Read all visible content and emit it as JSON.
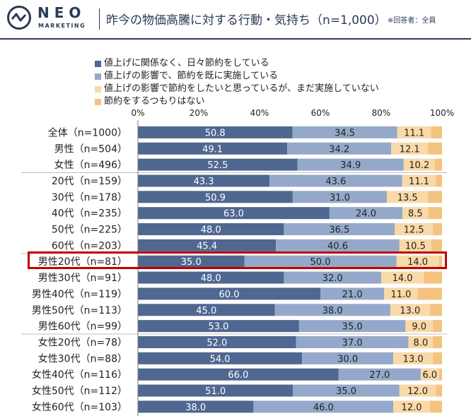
{
  "brand": {
    "name": "NEO",
    "sub": "MARKETING"
  },
  "title": "昨今の物価高騰に対する行動・気持ち（n=1,000）",
  "title_note": "※回答者：全員",
  "colors": {
    "s1": "#4f6791",
    "s2": "#94a9c9",
    "s3": "#f9d9a8",
    "s4": "#f5c280",
    "highlight": "#c00000",
    "ink": "#2b3a55"
  },
  "chart_data": {
    "type": "bar",
    "orientation": "horizontal",
    "stacked": true,
    "percent_scale": true,
    "xlim": [
      0,
      100
    ],
    "x_ticks": [
      "0%",
      "20%",
      "40%",
      "60%",
      "80%",
      "100%"
    ],
    "categories": [
      "全体（n=1000）",
      "男性（n=504）",
      "女性（n=496）",
      "20代（n=159）",
      "30代（n=178）",
      "40代（n=235）",
      "50代（n=225）",
      "60代（n=203）",
      "男性20代（n=81）",
      "男性30代（n=91）",
      "男性40代（n=119）",
      "男性50代（n=113）",
      "男性60代（n=99）",
      "女性20代（n=78）",
      "女性30代（n=88）",
      "女性40代（n=116）",
      "女性50代（n=112）",
      "女性60代（n=103）"
    ],
    "series": [
      {
        "name": "値上げに関係なく、日々節約をしている",
        "values": [
          50.8,
          49.1,
          52.5,
          43.3,
          50.9,
          63.0,
          48.0,
          45.4,
          35.0,
          48.0,
          60.0,
          45.0,
          53.0,
          52.0,
          54.0,
          66.0,
          51.0,
          38.0
        ],
        "labels": [
          "50.8",
          "49.1",
          "52.5",
          "43.3",
          "50.9",
          "63.0",
          "48.0",
          "45.4",
          "35.0",
          "48.0",
          "60.0",
          "45.0",
          "53.0",
          "52.0",
          "54.0",
          "66.0",
          "51.0",
          "38.0"
        ]
      },
      {
        "name": "値上げの影響で、節約を既に実施している",
        "values": [
          34.5,
          34.2,
          34.9,
          43.6,
          31.0,
          24.0,
          36.5,
          40.6,
          50.0,
          32.0,
          21.0,
          38.0,
          35.0,
          37.0,
          30.0,
          27.0,
          35.0,
          46.0
        ],
        "labels": [
          "34.5",
          "34.2",
          "34.9",
          "43.6",
          "31.0",
          "24.0",
          "36.5",
          "40.6",
          "50.0",
          "32.0",
          "21.0",
          "38.0",
          "35.0",
          "37.0",
          "30.0",
          "27.0",
          "35.0",
          "46.0"
        ]
      },
      {
        "name": "値上げの影響で節約をしたいと思っているが、まだ実施していない",
        "values": [
          11.1,
          12.1,
          10.2,
          11.1,
          13.5,
          8.5,
          12.5,
          10.5,
          14.0,
          14.0,
          11.0,
          13.0,
          9.0,
          8.0,
          13.0,
          6.0,
          12.0,
          12.0
        ],
        "labels": [
          "11.1",
          "12.1",
          "10.2",
          "11.1",
          "13.5",
          "8.5",
          "12.5",
          "10.5",
          "14.0",
          "14.0",
          "11.0",
          "13.0",
          "9.0",
          "8.0",
          "13.0",
          "6.0",
          "12.0",
          "12.0"
        ]
      },
      {
        "name": "節約をするつもりはない",
        "values": [
          3.6,
          4.6,
          2.4,
          2.0,
          4.6,
          4.5,
          3.0,
          3.5,
          1.0,
          6.0,
          8.0,
          4.0,
          3.0,
          3.0,
          3.0,
          1.0,
          2.0,
          4.0
        ]
      }
    ],
    "group_separators_after": [
      2,
      7,
      12
    ],
    "highlight_row": 8,
    "legend_position": "top"
  }
}
